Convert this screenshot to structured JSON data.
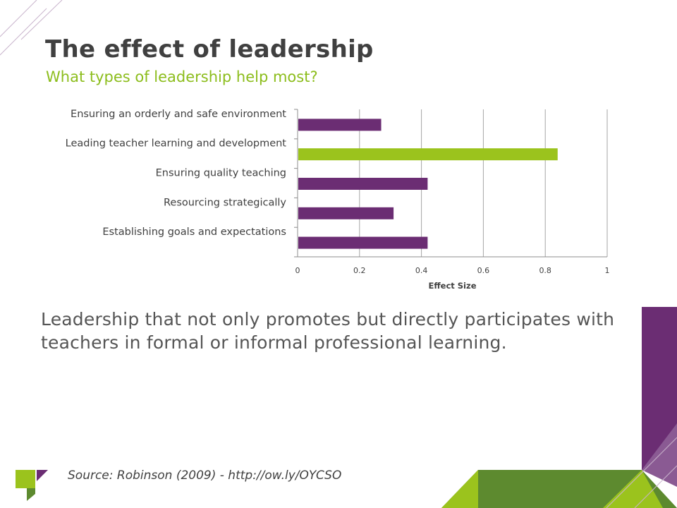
{
  "slide": {
    "title": "The effect of leadership",
    "subtitle": "What types of leadership help most?",
    "body": "Leadership that not only promotes but directly participates with teachers in formal or informal professional learning.",
    "source": "Source: Robinson (2009) - http://ow.ly/OYCSO"
  },
  "colors": {
    "purple": "#6b2d73",
    "green": "#9bc31d",
    "title": "#404040",
    "subtitle": "#8cbd1c",
    "grid": "#a6a6a6",
    "dark_green": "#5d8a2f"
  },
  "chart_data": {
    "type": "bar",
    "orientation": "horizontal",
    "categories": [
      "Ensuring an orderly and safe environment",
      "Leading teacher learning and development",
      "Ensuring quality teaching",
      "Resourcing strategically",
      "Establishing goals and expectations"
    ],
    "values": [
      0.27,
      0.84,
      0.42,
      0.31,
      0.42
    ],
    "highlight_index": 1,
    "xlabel": "Effect Size",
    "xlim": [
      0,
      1
    ],
    "xticks": [
      "0",
      "0.2",
      "0.4",
      "0.6",
      "0.8",
      "1"
    ],
    "grid": true
  }
}
